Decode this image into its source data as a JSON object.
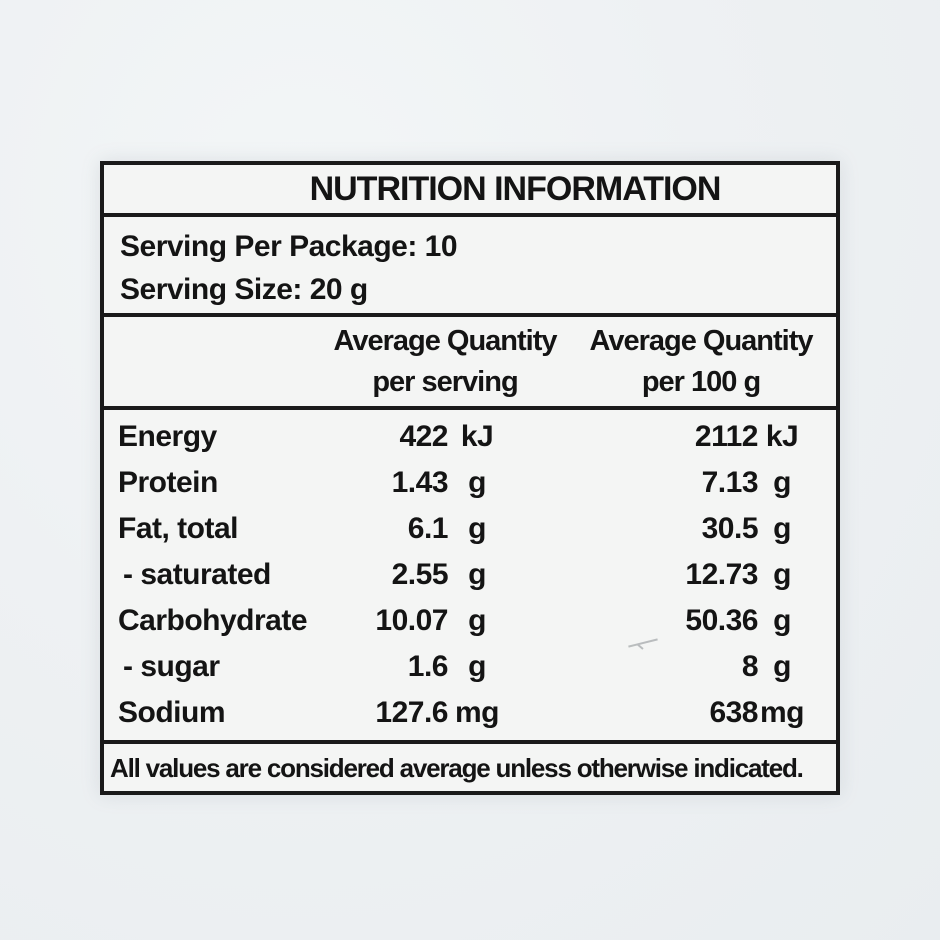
{
  "label": {
    "title": "NUTRITION INFORMATION",
    "serving": {
      "per_package": "Serving Per Package: 10",
      "size": "Serving Size: 20 g"
    },
    "columns": {
      "per_serving": {
        "line1": "Average Quantity",
        "line2": "per serving"
      },
      "per_100g": {
        "line1": "Average Quantity",
        "line2": "per 100 g"
      }
    },
    "rows": [
      {
        "nutrient": "Energy",
        "per_serving_value": "422",
        "per_serving_unit": "kJ",
        "per_100g_value": "2112",
        "per_100g_unit": "kJ"
      },
      {
        "nutrient": "Protein",
        "per_serving_value": "1.43",
        "per_serving_unit": "g",
        "per_100g_value": "7.13",
        "per_100g_unit": "g"
      },
      {
        "nutrient": "Fat, total",
        "per_serving_value": "6.1",
        "per_serving_unit": "g",
        "per_100g_value": "30.5",
        "per_100g_unit": "g"
      },
      {
        "nutrient": "- saturated",
        "per_serving_value": "2.55",
        "per_serving_unit": "g",
        "per_100g_value": "12.73",
        "per_100g_unit": "g"
      },
      {
        "nutrient": "Carbohydrate",
        "per_serving_value": "10.07",
        "per_serving_unit": "g",
        "per_100g_value": "50.36",
        "per_100g_unit": "g"
      },
      {
        "nutrient": "- sugar",
        "per_serving_value": "1.6",
        "per_serving_unit": "g",
        "per_100g_value": "8",
        "per_100g_unit": "g"
      },
      {
        "nutrient": "Sodium",
        "per_serving_value": "127.6",
        "per_serving_unit": "mg",
        "per_100g_value": "638",
        "per_100g_unit": "mg"
      }
    ],
    "footnote": "All values are considered average unless otherwise indicated.",
    "colors": {
      "border": "#1a1a1a",
      "text": "#141414",
      "label_bg": "#f4f5f4",
      "page_bg": "#eef1f3"
    }
  }
}
